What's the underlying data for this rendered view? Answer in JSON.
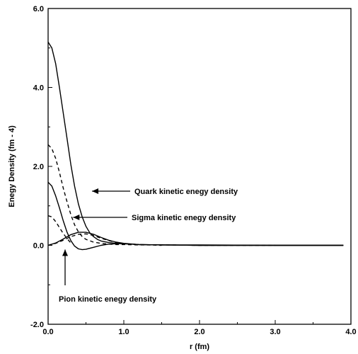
{
  "chart_data": {
    "type": "line",
    "xlabel": "r (fm)",
    "ylabel": "Enegy Density (fm - 4)",
    "xlim": [
      0.0,
      4.0
    ],
    "ylim": [
      -2.0,
      6.0
    ],
    "x_ticks": [
      "0.0",
      "1.0",
      "2.0",
      "3.0",
      "4.0"
    ],
    "y_ticks": [
      "-2.0",
      "0.0",
      "2.0",
      "4.0",
      "6.0"
    ],
    "grid": false,
    "series": [
      {
        "style": "solid",
        "x": [
          0.0,
          0.05,
          0.1,
          0.15,
          0.2,
          0.25,
          0.3,
          0.35,
          0.4,
          0.45,
          0.5,
          0.55,
          0.6,
          0.65,
          0.7,
          0.8,
          0.9,
          1.0,
          1.1,
          1.2,
          1.5,
          2.0,
          3.0,
          3.9
        ],
        "y": [
          5.15,
          5.0,
          4.6,
          4.0,
          3.35,
          2.7,
          2.05,
          1.5,
          1.05,
          0.72,
          0.48,
          0.32,
          0.22,
          0.15,
          0.11,
          0.07,
          0.05,
          0.04,
          0.03,
          0.02,
          0.01,
          0.01,
          0.0,
          0.0
        ]
      },
      {
        "style": "dashed",
        "x": [
          0.0,
          0.05,
          0.1,
          0.15,
          0.2,
          0.25,
          0.3,
          0.35,
          0.4,
          0.45,
          0.5,
          0.6,
          0.7,
          0.8,
          0.9,
          1.0,
          1.2,
          1.5,
          2.0,
          3.0
        ],
        "y": [
          2.55,
          2.45,
          2.2,
          1.85,
          1.45,
          1.1,
          0.78,
          0.52,
          0.34,
          0.22,
          0.15,
          0.08,
          0.05,
          0.03,
          0.02,
          0.02,
          0.01,
          0.01,
          0.0,
          0.0
        ]
      },
      {
        "style": "solid",
        "x": [
          0.0,
          0.05,
          0.1,
          0.15,
          0.2,
          0.25,
          0.3,
          0.35,
          0.4,
          0.45,
          0.5,
          0.6,
          0.7,
          0.8,
          0.9,
          1.0,
          1.1,
          1.2,
          1.5,
          2.0,
          3.0,
          3.9
        ],
        "y": [
          1.6,
          1.5,
          1.25,
          0.95,
          0.62,
          0.33,
          0.12,
          -0.02,
          -0.09,
          -0.11,
          -0.1,
          -0.05,
          0.0,
          0.03,
          0.04,
          0.04,
          0.03,
          0.02,
          0.01,
          0.0,
          0.0,
          0.0
        ]
      },
      {
        "style": "dashed",
        "x": [
          0.0,
          0.05,
          0.1,
          0.15,
          0.2,
          0.25,
          0.3
        ],
        "y": [
          0.75,
          0.72,
          0.6,
          0.45,
          0.3,
          0.17,
          0.06
        ]
      },
      {
        "style": "solid",
        "x": [
          0.0,
          0.1,
          0.2,
          0.3,
          0.4,
          0.5,
          0.6,
          0.7,
          0.8,
          0.9,
          1.0,
          1.2,
          1.5,
          2.0,
          3.0,
          3.9
        ],
        "y": [
          0.0,
          0.06,
          0.16,
          0.27,
          0.33,
          0.33,
          0.28,
          0.2,
          0.13,
          0.08,
          0.05,
          0.02,
          0.01,
          0.0,
          0.0,
          0.0
        ]
      },
      {
        "style": "dashed",
        "x": [
          0.0,
          0.1,
          0.2,
          0.3,
          0.4,
          0.5,
          0.6,
          0.7,
          0.8,
          0.9,
          1.0,
          1.2,
          1.5
        ],
        "y": [
          0.0,
          0.05,
          0.13,
          0.22,
          0.28,
          0.29,
          0.25,
          0.18,
          0.12,
          0.07,
          0.04,
          0.02,
          0.0
        ]
      }
    ],
    "annotations": [
      {
        "text": "Quark kinetic enegy density",
        "arrow_x": 0.58,
        "arrow_y": 1.35
      },
      {
        "text": "Sigma kinetic enegy density",
        "arrow_x": 0.33,
        "arrow_y": 0.72
      },
      {
        "text": "Pion kinetic enegy density",
        "arrow_x": 0.21,
        "arrow_y": 0.0
      }
    ]
  }
}
